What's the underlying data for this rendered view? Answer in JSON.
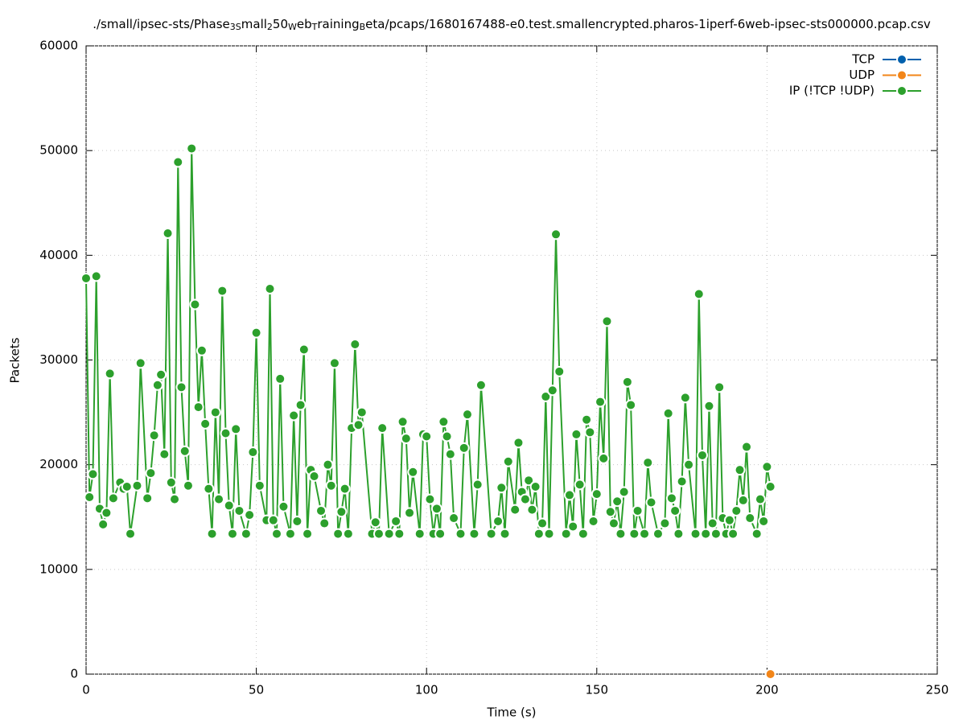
{
  "chart_data": {
    "type": "line",
    "title": [
      {
        "text": "./small/ipsec-sts/Phase"
      },
      {
        "text": "3S",
        "sub": true
      },
      {
        "text": "mall"
      },
      {
        "text": "2",
        "sub": true
      },
      {
        "text": "50"
      },
      {
        "text": "W",
        "sub": true
      },
      {
        "text": "eb"
      },
      {
        "text": "T",
        "sub": true
      },
      {
        "text": "raining"
      },
      {
        "text": "B",
        "sub": true
      },
      {
        "text": "eta/pcaps/1680167488-e0.test.smallencrypted.pharos-1iperf-6web-ipsec-sts000000.pcap.csv"
      }
    ],
    "x_label": "Time (s)",
    "y_label": "Packets",
    "xlim": [
      0,
      250
    ],
    "xticks": [
      0,
      50,
      100,
      150,
      200,
      250
    ],
    "ylim": [
      0,
      60000
    ],
    "yticks": [
      0,
      10000,
      20000,
      30000,
      40000,
      50000,
      60000
    ],
    "grid": true,
    "legend": "top right",
    "series": [
      {
        "name": "TCP",
        "color": "#0060ad",
        "x": [],
        "values": []
      },
      {
        "name": "UDP",
        "color": "#f28518",
        "x": [
          201
        ],
        "values": [
          0
        ]
      },
      {
        "name": "IP (!TCP  !UDP)",
        "color": "#2ca02c",
        "x": [
          0,
          1,
          2,
          3,
          4,
          5,
          6,
          7,
          8,
          10,
          11,
          12,
          13,
          15,
          16,
          18,
          19,
          20,
          21,
          22,
          23,
          24,
          25,
          26,
          27,
          28,
          29,
          30,
          31,
          32,
          33,
          34,
          35,
          36,
          37,
          38,
          39,
          40,
          41,
          42,
          43,
          44,
          45,
          47,
          48,
          49,
          50,
          51,
          53,
          54,
          55,
          56,
          57,
          58,
          60,
          61,
          62,
          63,
          64,
          65,
          66,
          67,
          69,
          70,
          71,
          72,
          73,
          74,
          75,
          76,
          77,
          78,
          79,
          80,
          81,
          84,
          85,
          86,
          87,
          89,
          91,
          92,
          93,
          94,
          95,
          96,
          98,
          99,
          100,
          101,
          102,
          103,
          104,
          105,
          106,
          107,
          108,
          110,
          111,
          112,
          114,
          115,
          116,
          119,
          121,
          122,
          123,
          124,
          126,
          127,
          128,
          129,
          130,
          131,
          132,
          133,
          134,
          135,
          136,
          137,
          138,
          139,
          141,
          142,
          143,
          144,
          145,
          146,
          147,
          148,
          149,
          150,
          151,
          152,
          153,
          154,
          155,
          156,
          157,
          158,
          159,
          160,
          161,
          162,
          164,
          165,
          166,
          168,
          170,
          171,
          172,
          173,
          174,
          175,
          176,
          177,
          179,
          180,
          181,
          182,
          183,
          184,
          185,
          186,
          187,
          188,
          189,
          190,
          191,
          192,
          193,
          194,
          195,
          197,
          198,
          199,
          200,
          201
        ],
        "values": [
          37800,
          16900,
          19100,
          38000,
          15800,
          14300,
          15400,
          28700,
          16800,
          18300,
          17700,
          17900,
          13400,
          18000,
          29700,
          16800,
          19200,
          22800,
          27600,
          28600,
          21000,
          42100,
          18300,
          16700,
          48900,
          27400,
          21300,
          18000,
          50200,
          35300,
          25500,
          30900,
          23900,
          17700,
          13400,
          25000,
          16700,
          36600,
          23000,
          16100,
          13400,
          23400,
          15600,
          13400,
          15200,
          21200,
          32600,
          18000,
          14700,
          36800,
          14700,
          13400,
          28200,
          16000,
          13400,
          24700,
          14600,
          25700,
          31000,
          13400,
          19500,
          18900,
          15600,
          14400,
          20000,
          18000,
          29700,
          13400,
          15500,
          17700,
          13400,
          23500,
          31500,
          23800,
          25000,
          13400,
          14500,
          13400,
          23500,
          13400,
          14600,
          13400,
          24100,
          22500,
          15400,
          19300,
          13400,
          22900,
          22700,
          16700,
          13400,
          15800,
          13400,
          24100,
          22700,
          21000,
          14900,
          13400,
          21600,
          24800,
          13400,
          18100,
          27600,
          13400,
          14600,
          17800,
          13400,
          20300,
          15700,
          22100,
          17400,
          16700,
          18500,
          15700,
          17900,
          13400,
          14400,
          26500,
          13400,
          27100,
          42000,
          28900,
          13400,
          17100,
          14100,
          22900,
          18100,
          13400,
          24300,
          23100,
          14600,
          17200,
          26000,
          20600,
          33700,
          15500,
          14400,
          16500,
          13400,
          17400,
          27900,
          25700,
          13400,
          15600,
          13400,
          20200,
          16400,
          13400,
          14400,
          24900,
          16800,
          15600,
          13400,
          18400,
          26400,
          20000,
          13400,
          36300,
          20900,
          13400,
          25600,
          14400,
          13400,
          27400,
          14900,
          13400,
          14700,
          13400,
          15600,
          19500,
          16600,
          21700,
          14900,
          13400,
          16700,
          14600,
          19800,
          17900
        ]
      }
    ]
  }
}
